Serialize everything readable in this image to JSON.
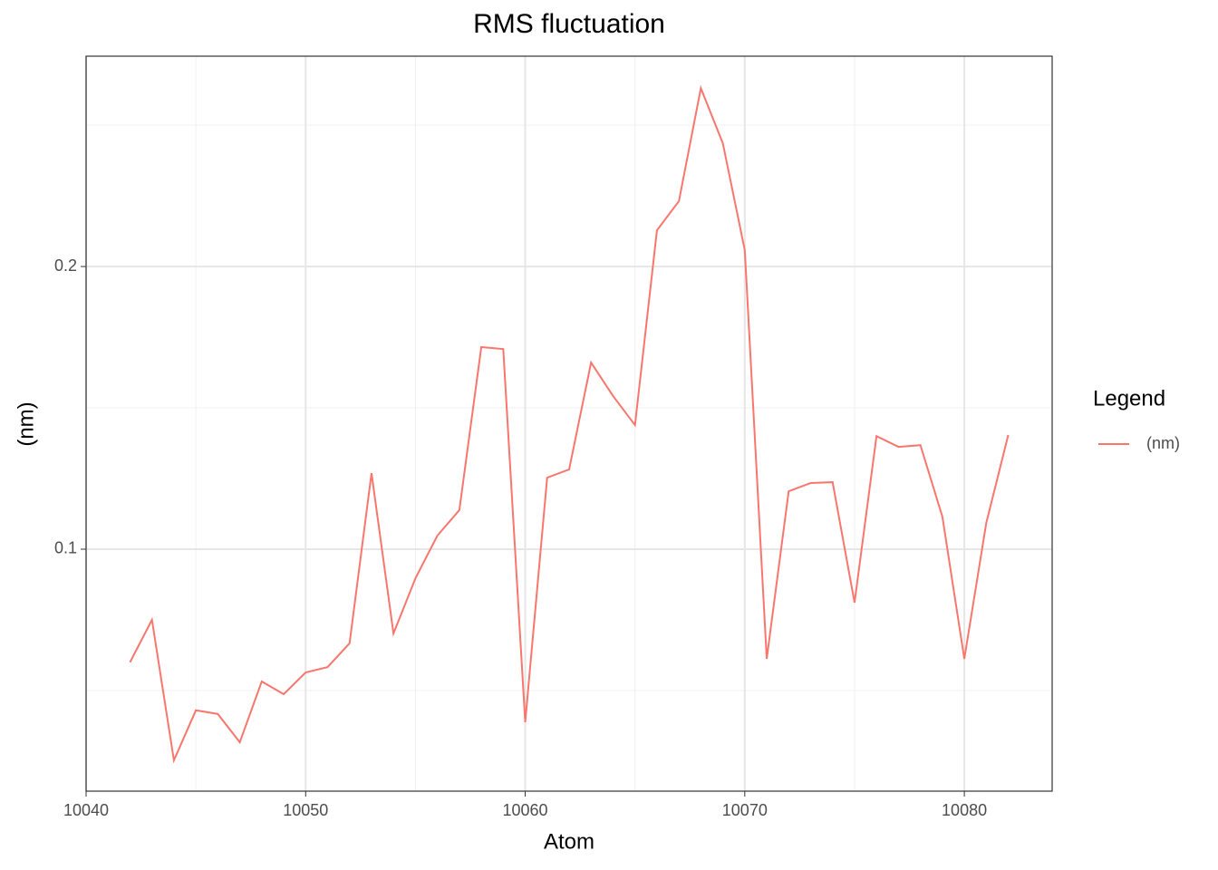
{
  "chart_data": {
    "type": "line",
    "title": "RMS fluctuation",
    "x_label": "Atom",
    "y_label": "(nm)",
    "x": [
      10042,
      10043,
      10044,
      10045,
      10046,
      10047,
      10048,
      10049,
      10050,
      10051,
      10052,
      10053,
      10054,
      10055,
      10056,
      10057,
      10058,
      10059,
      10060,
      10061,
      10062,
      10063,
      10064,
      10065,
      10066,
      10067,
      10068,
      10069,
      10070,
      10071,
      10072,
      10073,
      10074,
      10075,
      10076,
      10077,
      10078,
      10079,
      10080,
      10081,
      10082
    ],
    "series": [
      {
        "name": "(nm)",
        "color": "#F8766D",
        "values": [
          0.06,
          0.075,
          0.0253,
          0.043,
          0.0417,
          0.0317,
          0.0532,
          0.0487,
          0.0564,
          0.0583,
          0.0667,
          0.1269,
          0.0702,
          0.0897,
          0.1048,
          0.1138,
          0.1715,
          0.1708,
          0.0388,
          0.1253,
          0.1282,
          0.166,
          0.1542,
          0.1439,
          0.2128,
          0.2231,
          0.2631,
          0.2436,
          0.2058,
          0.0612,
          0.1205,
          0.1234,
          0.1237,
          0.0811,
          0.14,
          0.1362,
          0.1368,
          0.1115,
          0.0612,
          0.1093,
          0.1404
        ]
      }
    ],
    "xlim": [
      10040,
      10084
    ],
    "xticks": [
      10040,
      10050,
      10060,
      10070,
      10080
    ],
    "ylim": [
      0.0144,
      0.2744
    ],
    "yticks": [
      0.1,
      0.2
    ],
    "x_minor_grid": [
      10045,
      10055,
      10065,
      10075
    ],
    "y_minor_grid": [
      0.05,
      0.15,
      0.25
    ],
    "grid": true,
    "legend_title": "Legend",
    "legend_position": "right"
  }
}
